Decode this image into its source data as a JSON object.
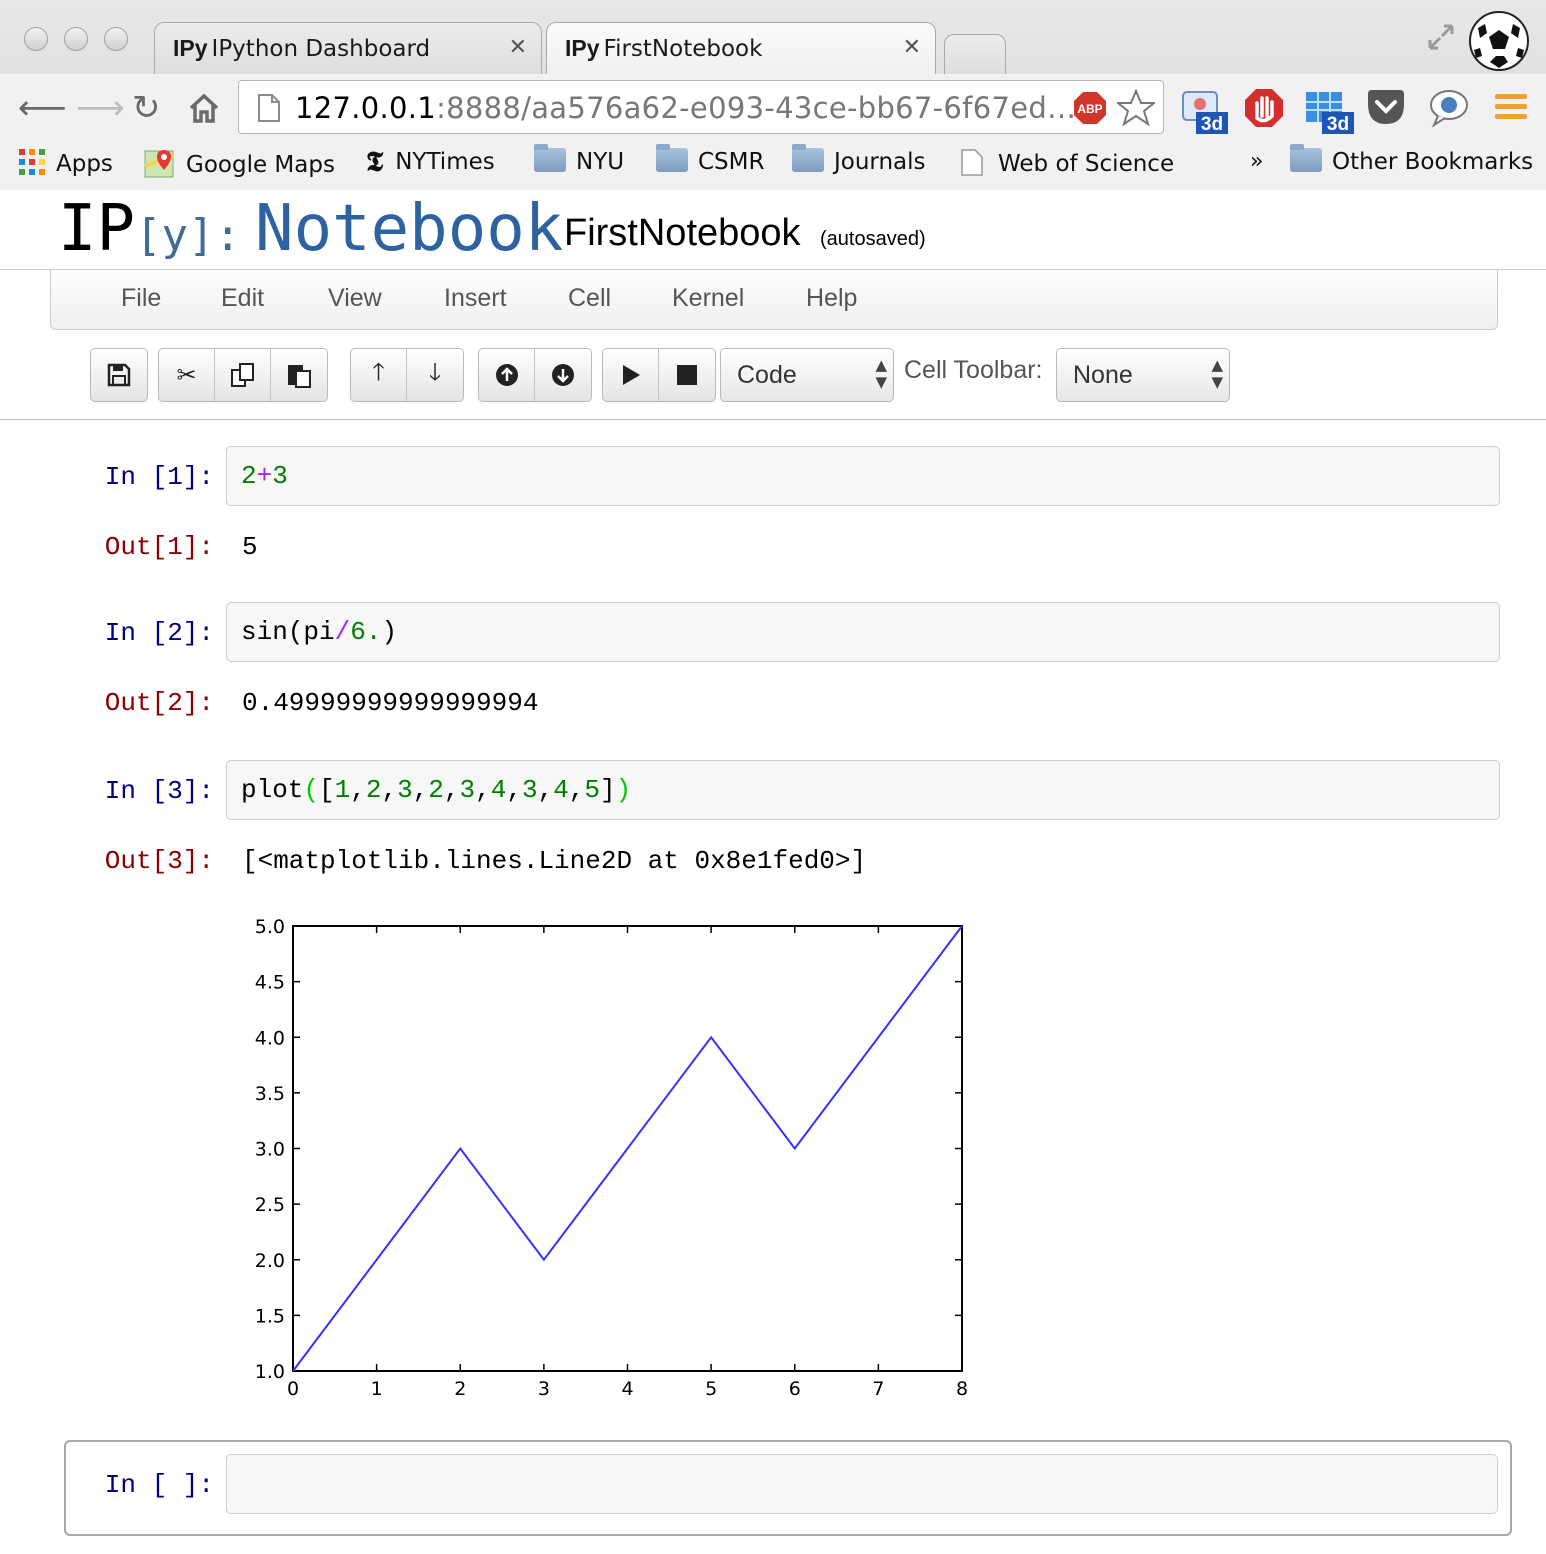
{
  "browser": {
    "tabs": [
      {
        "icon": "IPy",
        "title": "IPython Dashboard"
      },
      {
        "icon": "IPy",
        "title": "FirstNotebook"
      }
    ],
    "url_host": "127.0.0.1",
    "url_rest": ":8888/aa576a62-e093-43ce-bb67-6f67ed…",
    "adblock_label": "ABP",
    "ext_badge_1": "3d",
    "ext_badge_2": "3d",
    "bookmarks": [
      "Apps",
      "Google Maps",
      "NYTimes",
      "NYU",
      "CSMR",
      "Journals",
      "Web of Science"
    ],
    "bookmarks_overflow": "»",
    "other_bookmarks": "Other Bookmarks"
  },
  "notebook": {
    "logo_ip": "IP",
    "logo_y": "[y]:",
    "logo_word": "Notebook",
    "name": "FirstNotebook",
    "status": "(autosaved)"
  },
  "menu": [
    "File",
    "Edit",
    "View",
    "Insert",
    "Cell",
    "Kernel",
    "Help"
  ],
  "toolbar": {
    "cell_type": "Code",
    "cell_toolbar_label": "Cell Toolbar:",
    "cell_toolbar_value": "None"
  },
  "cells": [
    {
      "in_prompt": "In [1]:",
      "out_prompt": "Out[1]:",
      "output": "5"
    },
    {
      "in_prompt": "In [2]:",
      "out_prompt": "Out[2]:",
      "output": "0.49999999999999994"
    },
    {
      "in_prompt": "In [3]:",
      "out_prompt": "Out[3]:",
      "output": "[<matplotlib.lines.Line2D at 0x8e1fed0>]"
    }
  ],
  "empty_prompt": "In [ ]:",
  "code": {
    "c1": {
      "a": "2",
      "op": "+",
      "b": "3"
    },
    "c2": {
      "pre": "sin(pi",
      "op": "/",
      "num": "6.",
      "post": ")"
    },
    "c3": {
      "pre": "plot",
      "open": "(",
      "items": "[1,2,3,2,3,4,3,4,5]",
      "close": ")"
    }
  },
  "chart_data": {
    "type": "line",
    "x": [
      0,
      1,
      2,
      3,
      4,
      5,
      6,
      7,
      8
    ],
    "series": [
      {
        "values": [
          1,
          2,
          3,
          2,
          3,
          4,
          3,
          4,
          5
        ],
        "color": "#3333ff"
      }
    ],
    "xlim": [
      0,
      8
    ],
    "ylim": [
      1.0,
      5.0
    ],
    "xticks": [
      "0",
      "1",
      "2",
      "3",
      "4",
      "5",
      "6",
      "7",
      "8"
    ],
    "yticks": [
      "1.0",
      "1.5",
      "2.0",
      "2.5",
      "3.0",
      "3.5",
      "4.0",
      "4.5",
      "5.0"
    ],
    "grid": false
  }
}
